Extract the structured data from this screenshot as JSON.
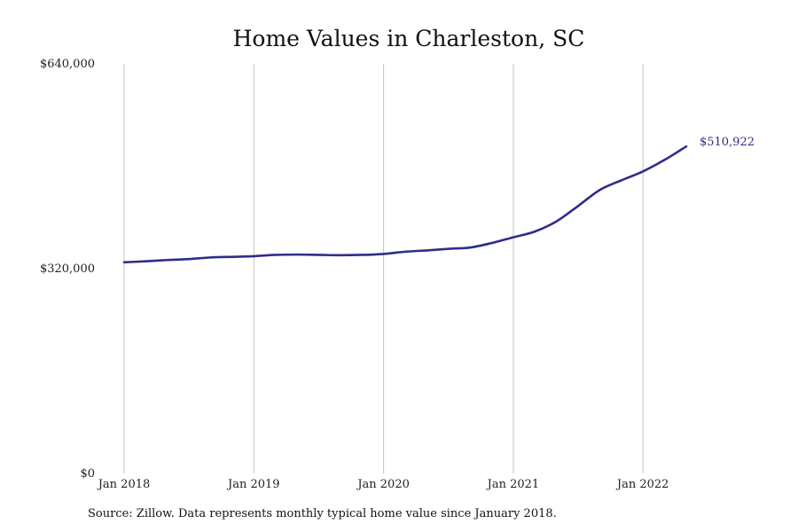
{
  "chart_data": {
    "type": "line",
    "title": "Home Values in Charleston, SC",
    "xlabel": "",
    "ylabel": "",
    "ylim": [
      0,
      640000
    ],
    "y_ticks": [
      0,
      320000,
      640000
    ],
    "y_tick_labels": [
      "$0",
      "$320,000",
      "$640,000"
    ],
    "x_ticks": [
      "2018-01",
      "2019-01",
      "2020-01",
      "2021-01",
      "2022-01"
    ],
    "x_tick_labels": [
      "Jan 2018",
      "Jan 2019",
      "Jan 2020",
      "Jan 2021",
      "Jan 2022"
    ],
    "x_range": [
      "2018-01",
      "2022-12"
    ],
    "grid": "vertical",
    "legend": "none",
    "end_label": "$510,922",
    "series": [
      {
        "color": "#2e2d8a",
        "points": [
          {
            "x": "2018-01",
            "y": 330000
          },
          {
            "x": "2018-03",
            "y": 331500
          },
          {
            "x": "2018-05",
            "y": 333500
          },
          {
            "x": "2018-07",
            "y": 335000
          },
          {
            "x": "2018-09",
            "y": 337500
          },
          {
            "x": "2018-11",
            "y": 338500
          },
          {
            "x": "2019-01",
            "y": 339500
          },
          {
            "x": "2019-03",
            "y": 341500
          },
          {
            "x": "2019-05",
            "y": 342000
          },
          {
            "x": "2019-07",
            "y": 341500
          },
          {
            "x": "2019-09",
            "y": 341000
          },
          {
            "x": "2019-11",
            "y": 341500
          },
          {
            "x": "2020-01",
            "y": 343000
          },
          {
            "x": "2020-03",
            "y": 346500
          },
          {
            "x": "2020-05",
            "y": 348500
          },
          {
            "x": "2020-07",
            "y": 351000
          },
          {
            "x": "2020-09",
            "y": 353000
          },
          {
            "x": "2020-11",
            "y": 360000
          },
          {
            "x": "2021-01",
            "y": 369000
          },
          {
            "x": "2021-03",
            "y": 378000
          },
          {
            "x": "2021-05",
            "y": 394000
          },
          {
            "x": "2021-07",
            "y": 418000
          },
          {
            "x": "2021-09",
            "y": 443000
          },
          {
            "x": "2021-11",
            "y": 458000
          },
          {
            "x": "2022-01",
            "y": 472000
          },
          {
            "x": "2022-03",
            "y": 490000
          },
          {
            "x": "2022-05",
            "y": 510922
          }
        ]
      }
    ]
  },
  "source_note": "Source: Zillow. Data represents monthly typical home value since January 2018."
}
